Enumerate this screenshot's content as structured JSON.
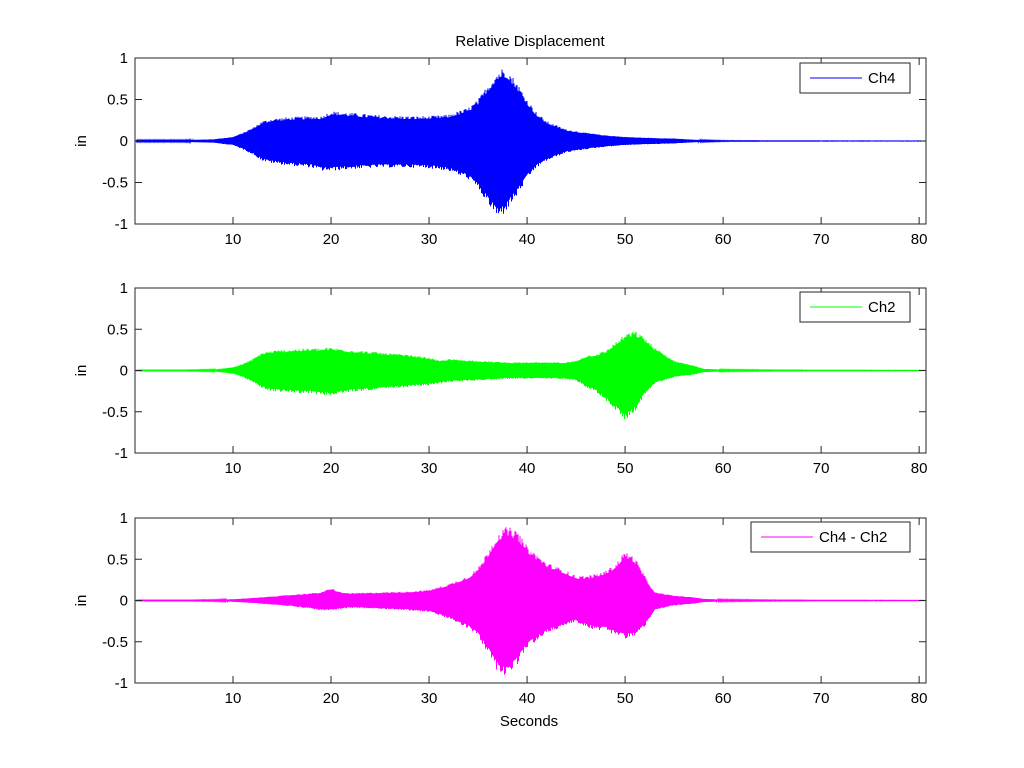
{
  "chart_data": {
    "type": "line",
    "title": "Relative Displacement",
    "xlabel": "Seconds",
    "subplots": [
      {
        "name": "Ch4",
        "color": "#0000ff",
        "ylabel": "in",
        "xlim": [
          0,
          80.7
        ],
        "ylim": [
          -1,
          1
        ],
        "xticks": [
          10,
          20,
          30,
          40,
          50,
          60,
          70,
          80
        ],
        "yticks": [
          -1,
          -0.5,
          0,
          0.5,
          1
        ],
        "ytick_labels": [
          "-1",
          "-0.5",
          "0",
          "0.5",
          "1"
        ],
        "legend": "Ch4",
        "envelope": {
          "t": [
            0,
            5,
            8,
            10,
            11,
            12,
            13,
            14,
            16,
            18,
            19,
            20,
            22,
            25,
            28,
            30,
            32,
            34,
            35,
            36,
            37,
            37.5,
            38,
            39,
            40,
            41,
            42,
            44,
            46,
            48,
            50,
            52,
            55,
            57,
            58,
            60,
            65,
            70,
            80.7
          ],
          "upper": [
            0.01,
            0.01,
            0.02,
            0.05,
            0.1,
            0.16,
            0.24,
            0.27,
            0.29,
            0.3,
            0.3,
            0.36,
            0.34,
            0.31,
            0.3,
            0.3,
            0.32,
            0.4,
            0.5,
            0.68,
            0.84,
            0.88,
            0.86,
            0.7,
            0.5,
            0.34,
            0.24,
            0.14,
            0.1,
            0.07,
            0.05,
            0.04,
            0.03,
            0.015,
            0.01,
            0.005,
            0.003,
            0.002,
            0.002
          ],
          "lower": [
            -0.01,
            -0.01,
            -0.02,
            -0.05,
            -0.1,
            -0.16,
            -0.24,
            -0.27,
            -0.3,
            -0.32,
            -0.36,
            -0.36,
            -0.34,
            -0.32,
            -0.32,
            -0.33,
            -0.36,
            -0.46,
            -0.58,
            -0.76,
            -0.93,
            -0.9,
            -0.82,
            -0.66,
            -0.46,
            -0.32,
            -0.24,
            -0.14,
            -0.1,
            -0.07,
            -0.05,
            -0.04,
            -0.03,
            -0.015,
            -0.01,
            -0.005,
            -0.003,
            -0.002,
            -0.002
          ]
        }
      },
      {
        "name": "Ch2",
        "color": "#00ff00",
        "ylabel": "in",
        "xlim": [
          0,
          80.7
        ],
        "ylim": [
          -1,
          1
        ],
        "xticks": [
          10,
          20,
          30,
          40,
          50,
          60,
          70,
          80
        ],
        "yticks": [
          -1,
          -0.5,
          0,
          0.5,
          1
        ],
        "ytick_labels": [
          "-1",
          "-0.5",
          "0",
          "0.5",
          "1"
        ],
        "legend": "Ch2",
        "envelope": {
          "t": [
            0,
            5,
            8,
            10,
            11,
            12,
            13,
            14,
            16,
            18,
            19,
            20,
            22,
            25,
            28,
            30,
            31,
            32,
            35,
            38,
            40,
            44,
            45,
            46,
            47,
            48,
            49,
            50,
            51,
            52,
            53,
            55,
            57,
            58,
            60,
            65,
            70,
            80.7
          ],
          "upper": [
            0.005,
            0.005,
            0.01,
            0.04,
            0.08,
            0.14,
            0.22,
            0.24,
            0.26,
            0.27,
            0.27,
            0.28,
            0.25,
            0.22,
            0.19,
            0.16,
            0.12,
            0.14,
            0.12,
            0.1,
            0.1,
            0.1,
            0.12,
            0.18,
            0.2,
            0.24,
            0.34,
            0.44,
            0.48,
            0.4,
            0.28,
            0.12,
            0.06,
            0.02,
            0.01,
            0.006,
            0.004,
            0.003
          ],
          "lower": [
            -0.005,
            -0.005,
            -0.01,
            -0.04,
            -0.08,
            -0.14,
            -0.22,
            -0.25,
            -0.27,
            -0.28,
            -0.3,
            -0.3,
            -0.26,
            -0.23,
            -0.2,
            -0.18,
            -0.16,
            -0.14,
            -0.12,
            -0.1,
            -0.1,
            -0.1,
            -0.12,
            -0.2,
            -0.26,
            -0.36,
            -0.48,
            -0.6,
            -0.5,
            -0.3,
            -0.16,
            -0.08,
            -0.05,
            -0.02,
            -0.01,
            -0.006,
            -0.004,
            -0.003
          ]
        }
      },
      {
        "name": "Ch4 - Ch2",
        "color": "#ff00ff",
        "ylabel": "in",
        "xlim": [
          0,
          80.7
        ],
        "ylim": [
          -1,
          1
        ],
        "xticks": [
          10,
          20,
          30,
          40,
          50,
          60,
          70,
          80
        ],
        "yticks": [
          -1,
          -0.5,
          0,
          0.5,
          1
        ],
        "ytick_labels": [
          "-1",
          "-0.5",
          "0",
          "0.5",
          "1"
        ],
        "legend": "Ch4 - Ch2",
        "envelope": {
          "t": [
            0,
            5,
            8,
            10,
            12,
            14,
            16,
            18,
            19,
            20,
            21,
            22,
            25,
            28,
            30,
            32,
            34,
            35,
            36,
            37,
            38,
            39,
            40,
            42,
            44,
            45,
            46,
            47,
            48,
            49,
            50,
            51,
            52,
            53,
            55,
            57,
            58,
            60,
            65,
            70,
            80.7
          ],
          "upper": [
            0.005,
            0.005,
            0.008,
            0.015,
            0.03,
            0.05,
            0.07,
            0.09,
            0.1,
            0.15,
            0.1,
            0.09,
            0.1,
            0.11,
            0.13,
            0.2,
            0.3,
            0.4,
            0.6,
            0.82,
            0.9,
            0.84,
            0.66,
            0.46,
            0.36,
            0.3,
            0.3,
            0.32,
            0.36,
            0.44,
            0.6,
            0.52,
            0.3,
            0.1,
            0.06,
            0.04,
            0.02,
            0.01,
            0.006,
            0.004,
            0.003
          ],
          "lower": [
            -0.005,
            -0.005,
            -0.008,
            -0.015,
            -0.03,
            -0.05,
            -0.07,
            -0.1,
            -0.12,
            -0.12,
            -0.1,
            -0.09,
            -0.1,
            -0.12,
            -0.14,
            -0.22,
            -0.34,
            -0.44,
            -0.64,
            -0.86,
            -0.92,
            -0.78,
            -0.58,
            -0.4,
            -0.3,
            -0.26,
            -0.32,
            -0.36,
            -0.36,
            -0.42,
            -0.46,
            -0.44,
            -0.32,
            -0.12,
            -0.06,
            -0.04,
            -0.02,
            -0.01,
            -0.006,
            -0.004,
            -0.003
          ]
        }
      }
    ]
  },
  "figure": {
    "title": "Relative Displacement",
    "xlabel": "Seconds",
    "ylabel": "in",
    "legends": [
      "Ch4",
      "Ch2",
      "Ch4 - Ch2"
    ]
  }
}
